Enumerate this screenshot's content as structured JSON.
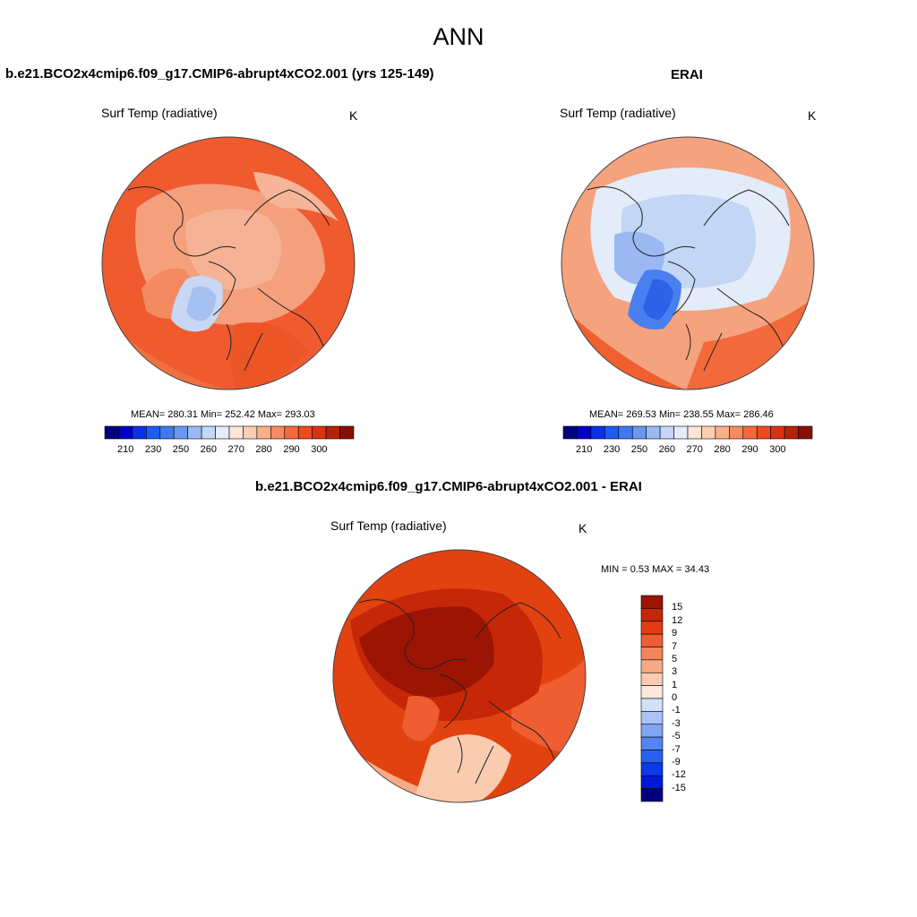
{
  "page": {
    "title": "ANN"
  },
  "panels": [
    {
      "id": "model",
      "title": "b.e21.BCO2x4cmip6.f09_g17.CMIP6-abrupt4xCO2.001 (yrs 125-149)",
      "variable": "Surf Temp (radiative)",
      "units": "K",
      "stats_text": "MEAN= 280.31  Min= 252.42  Max= 293.03"
    },
    {
      "id": "obs",
      "title": "ERAI",
      "variable": "Surf Temp (radiative)",
      "units": "K",
      "stats_text": "MEAN= 269.53  Min= 238.55  Max= 286.46"
    },
    {
      "id": "diff",
      "title": "b.e21.BCO2x4cmip6.f09_g17.CMIP6-abrupt4xCO2.001 - ERAI",
      "variable": "Surf Temp (radiative)",
      "units": "K",
      "stats_text": "MIN =   0.53 MAX =  34.43"
    }
  ],
  "colorbars": {
    "abs": {
      "colors": [
        "#00007f",
        "#0000c8",
        "#0d2fe8",
        "#1e5cf0",
        "#4079ee",
        "#6a97f0",
        "#9bb8f2",
        "#c3d6f5",
        "#e3ecf8",
        "#fde6d8",
        "#fbcfb4",
        "#f8b08a",
        "#f58b62",
        "#f26a3e",
        "#ec4a1e",
        "#d73312",
        "#b22308",
        "#880f03"
      ],
      "tick_labels": [
        "210",
        "230",
        "250",
        "260",
        "270",
        "280",
        "290",
        "300"
      ],
      "tick_positions": [
        1,
        3,
        5,
        7,
        9,
        11,
        13,
        15
      ]
    },
    "diff": {
      "colors": [
        "#00007f",
        "#0018d8",
        "#0c3ae8",
        "#2a5ff0",
        "#5385f2",
        "#7fa5f4",
        "#a9c3f6",
        "#d2e0f8",
        "#fde8dc",
        "#fbcbb0",
        "#f8aa86",
        "#f4845c",
        "#ef5d33",
        "#e23c12",
        "#c52708",
        "#9b1404"
      ],
      "tick_labels": [
        "15",
        "12",
        "9",
        "7",
        "5",
        "3",
        "1",
        "0",
        "-1",
        "-3",
        "-5",
        "-7",
        "-9",
        "-12",
        "-15"
      ]
    }
  },
  "chart_data": [
    {
      "type": "heatmap",
      "title": "b.e21.BCO2x4cmip6.f09_g17.CMIP6-abrupt4xCO2.001 (yrs 125-149)",
      "projection": "north polar stereographic",
      "variable": "Surf Temp (radiative)",
      "units": "K",
      "mean": 280.31,
      "min": 252.42,
      "max": 293.03,
      "contour_levels": [
        210,
        220,
        230,
        240,
        250,
        255,
        260,
        265,
        270,
        275,
        280,
        285,
        290,
        295,
        300,
        305,
        310
      ]
    },
    {
      "type": "heatmap",
      "title": "ERAI",
      "projection": "north polar stereographic",
      "variable": "Surf Temp (radiative)",
      "units": "K",
      "mean": 269.53,
      "min": 238.55,
      "max": 286.46,
      "contour_levels": [
        210,
        220,
        230,
        240,
        250,
        255,
        260,
        265,
        270,
        275,
        280,
        285,
        290,
        295,
        300,
        305,
        310
      ]
    },
    {
      "type": "heatmap",
      "title": "b.e21.BCO2x4cmip6.f09_g17.CMIP6-abrupt4xCO2.001 - ERAI",
      "projection": "north polar stereographic",
      "variable": "Surf Temp (radiative)",
      "units": "K",
      "min": 0.53,
      "max": 34.43,
      "contour_levels": [
        -15,
        -12,
        -9,
        -7,
        -5,
        -3,
        -1,
        0,
        1,
        3,
        5,
        7,
        9,
        12,
        15
      ]
    }
  ]
}
